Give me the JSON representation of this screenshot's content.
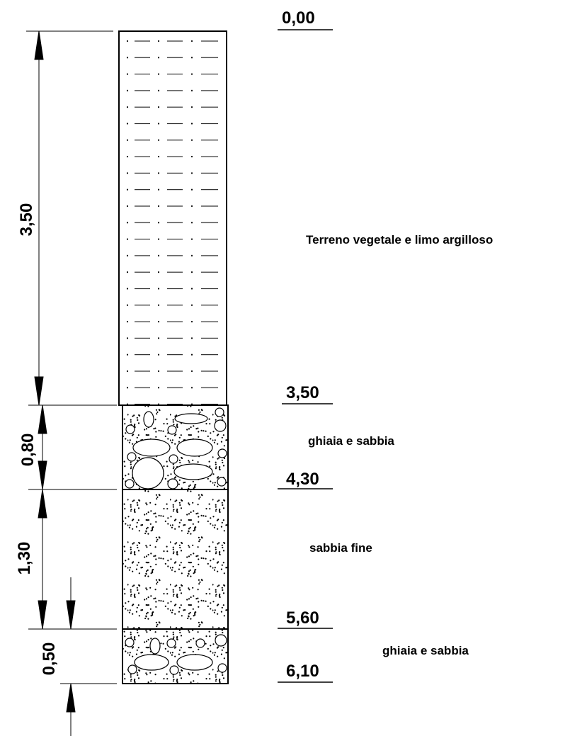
{
  "depths": [
    "0,00",
    "3,50",
    "4,30",
    "5,60",
    "6,10"
  ],
  "layers": [
    {
      "thickness": "3,50",
      "description": "Terreno vegetale e limo argilloso"
    },
    {
      "thickness": "0,80",
      "description": "ghiaia e sabbia"
    },
    {
      "thickness": "1,30",
      "description": "sabbia fine"
    },
    {
      "thickness": "0,50",
      "description": "ghiaia e sabbia"
    }
  ]
}
